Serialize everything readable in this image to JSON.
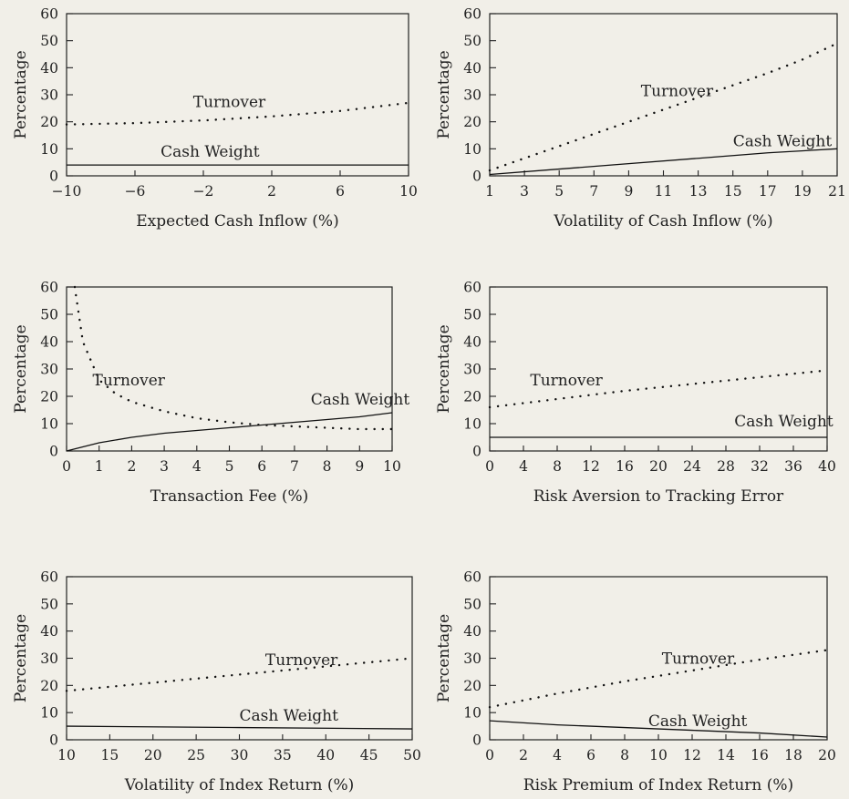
{
  "chart_data": [
    {
      "type": "line",
      "xlabel": "Expected Cash Inflow (%)",
      "ylabel": "Percentage",
      "xlim": [
        -10,
        10
      ],
      "ylim": [
        0,
        60
      ],
      "xticks": [
        -10,
        -6,
        -2,
        2,
        6,
        10
      ],
      "yticks": [
        0,
        10,
        20,
        30,
        40,
        50,
        60
      ],
      "series": [
        {
          "name": "Turnover",
          "style": "dotted",
          "x": [
            -10,
            -6,
            -2,
            2,
            6,
            10
          ],
          "y": [
            19,
            19.5,
            20.5,
            22,
            24,
            27
          ]
        },
        {
          "name": "Cash Weight",
          "style": "solid",
          "x": [
            -10,
            10
          ],
          "y": [
            4,
            4
          ]
        }
      ]
    },
    {
      "type": "line",
      "xlabel": "Volatility of Cash Inflow (%)",
      "ylabel": "Percentage",
      "xlim": [
        1,
        21
      ],
      "ylim": [
        0,
        60
      ],
      "xticks": [
        1,
        3,
        5,
        7,
        9,
        11,
        13,
        15,
        17,
        19,
        21
      ],
      "yticks": [
        0,
        10,
        20,
        30,
        40,
        50,
        60
      ],
      "series": [
        {
          "name": "Turnover",
          "style": "dotted",
          "x": [
            1,
            3,
            5,
            7,
            9,
            11,
            13,
            15,
            17,
            19,
            21
          ],
          "y": [
            2,
            6.5,
            11,
            15.5,
            20,
            24.5,
            29,
            33.5,
            38,
            43,
            49
          ]
        },
        {
          "name": "Cash Weight",
          "style": "solid",
          "x": [
            1,
            5,
            9,
            13,
            17,
            21
          ],
          "y": [
            0.5,
            2.5,
            4.5,
            6.5,
            8.5,
            10
          ]
        }
      ]
    },
    {
      "type": "line",
      "xlabel": "Transaction Fee (%)",
      "ylabel": "Percentage",
      "xlim": [
        0,
        10
      ],
      "ylim": [
        0,
        60
      ],
      "xticks": [
        0,
        1,
        2,
        3,
        4,
        5,
        6,
        7,
        8,
        9,
        10
      ],
      "yticks": [
        0,
        10,
        20,
        30,
        40,
        50,
        60
      ],
      "series": [
        {
          "name": "Turnover",
          "style": "dotted",
          "x": [
            0.25,
            0.5,
            1,
            1.5,
            2,
            3,
            4,
            5,
            6,
            7,
            8,
            9,
            10
          ],
          "y": [
            60,
            40,
            26,
            21,
            18,
            14.5,
            12,
            10.5,
            9.5,
            9,
            8.5,
            8,
            8
          ]
        },
        {
          "name": "Cash Weight",
          "style": "solid",
          "x": [
            0,
            1,
            2,
            3,
            4,
            5,
            6,
            7,
            8,
            9,
            10
          ],
          "y": [
            0,
            3,
            5,
            6.5,
            7.5,
            8.5,
            9.5,
            10.5,
            11.5,
            12.5,
            14
          ]
        }
      ]
    },
    {
      "type": "line",
      "xlabel": "Risk Aversion to Tracking Error",
      "ylabel": "Percentage",
      "xlim": [
        0,
        40
      ],
      "ylim": [
        0,
        60
      ],
      "xticks": [
        0,
        4,
        8,
        12,
        16,
        20,
        24,
        28,
        32,
        36,
        40
      ],
      "yticks": [
        0,
        10,
        20,
        30,
        40,
        50,
        60
      ],
      "series": [
        {
          "name": "Turnover",
          "style": "dotted",
          "x": [
            0,
            8,
            16,
            24,
            32,
            40
          ],
          "y": [
            16,
            19,
            22,
            24.5,
            27,
            29.5
          ]
        },
        {
          "name": "Cash Weight",
          "style": "solid",
          "x": [
            0,
            40
          ],
          "y": [
            5,
            5
          ]
        }
      ]
    },
    {
      "type": "line",
      "xlabel": "Volatility of Index Return (%)",
      "ylabel": "Percentage",
      "xlim": [
        10,
        50
      ],
      "ylim": [
        0,
        60
      ],
      "xticks": [
        10,
        15,
        20,
        25,
        30,
        35,
        40,
        45,
        50
      ],
      "yticks": [
        0,
        10,
        20,
        30,
        40,
        50,
        60
      ],
      "series": [
        {
          "name": "Turnover",
          "style": "dotted",
          "x": [
            10,
            20,
            30,
            40,
            50
          ],
          "y": [
            18,
            21,
            24,
            27,
            30
          ]
        },
        {
          "name": "Cash Weight",
          "style": "solid",
          "x": [
            10,
            30,
            50
          ],
          "y": [
            5,
            4.5,
            4
          ]
        }
      ]
    },
    {
      "type": "line",
      "xlabel": "Risk Premium of Index Return (%)",
      "ylabel": "Percentage",
      "xlim": [
        0,
        20
      ],
      "ylim": [
        0,
        60
      ],
      "xticks": [
        0,
        2,
        4,
        6,
        8,
        10,
        12,
        14,
        16,
        18,
        20
      ],
      "yticks": [
        0,
        10,
        20,
        30,
        40,
        50,
        60
      ],
      "series": [
        {
          "name": "Turnover",
          "style": "dotted",
          "x": [
            0,
            4,
            8,
            12,
            16,
            20
          ],
          "y": [
            12,
            17,
            21.5,
            25.5,
            29.5,
            33
          ]
        },
        {
          "name": "Cash Weight",
          "style": "solid",
          "x": [
            0,
            4,
            8,
            12,
            16,
            20
          ],
          "y": [
            7,
            5.5,
            4.5,
            3.5,
            2.5,
            1
          ]
        }
      ]
    }
  ]
}
